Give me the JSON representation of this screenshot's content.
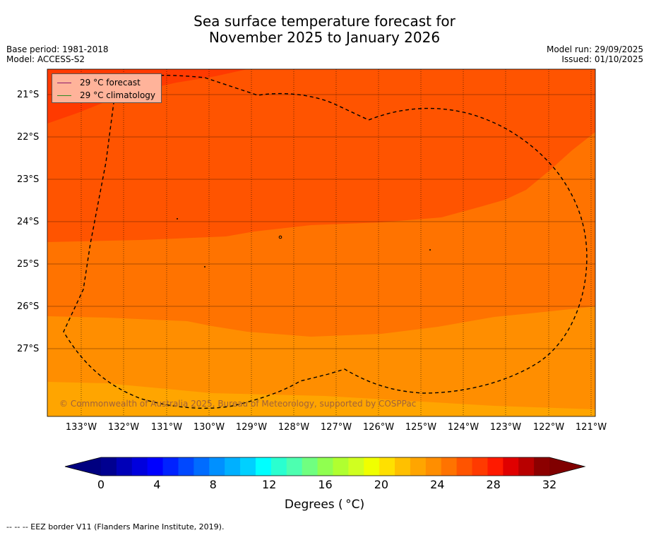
{
  "header": {
    "title_line1": "Sea surface temperature forecast for",
    "title_line2": "November 2025 to January 2026",
    "base_period": "Base period: 1981-2018",
    "model": "Model: ACCESS-S2",
    "model_run": "Model run: 29/09/2025",
    "issued": "Issued: 01/10/2025"
  },
  "legend": {
    "forecast_label": "29 °C  forecast",
    "climatology_label": "29 °C  climatology",
    "forecast_color": "#8b1a6b",
    "climatology_color": "#2e8b22"
  },
  "map": {
    "lat_labels": [
      "21°S",
      "22°S",
      "23°S",
      "24°S",
      "25°S",
      "26°S",
      "27°S"
    ],
    "lon_labels": [
      "133°W",
      "132°W",
      "131°W",
      "130°W",
      "129°W",
      "128°W",
      "127°W",
      "126°W",
      "125°W",
      "124°W",
      "123°W",
      "122°W",
      "121°W"
    ],
    "copyright": "© Commonwealth of Australia 2025, Bureau of Meteorology, supported by COSPPac",
    "zone_colors": {
      "above_29": "#ff3a00",
      "c28_29": "#ff5400",
      "c27_28": "#ff7300",
      "c26_27": "#ff8e00",
      "c25_26": "#ffa500"
    }
  },
  "colorbar": {
    "ticks": [
      "0",
      "4",
      "8",
      "12",
      "16",
      "20",
      "24",
      "28",
      "32"
    ],
    "title": "Degrees ( °C)",
    "colors": [
      "#000090",
      "#0000b8",
      "#0000dd",
      "#0000ff",
      "#0022ff",
      "#0048ff",
      "#006cff",
      "#0090ff",
      "#00b0ff",
      "#00d0ff",
      "#00ffff",
      "#2affd0",
      "#4dffb0",
      "#70ff80",
      "#90ff50",
      "#b0ff30",
      "#d0ff20",
      "#f0ff00",
      "#ffe000",
      "#ffc000",
      "#ffa500",
      "#ff8e00",
      "#ff7300",
      "#ff5400",
      "#ff3a00",
      "#ff1a00",
      "#e00000",
      "#b80000",
      "#8c0000"
    ],
    "low_color": "#000080",
    "high_color": "#800000"
  },
  "footer": "--  --  -- EEZ border V11 (Flanders Marine Institute, 2019)."
}
